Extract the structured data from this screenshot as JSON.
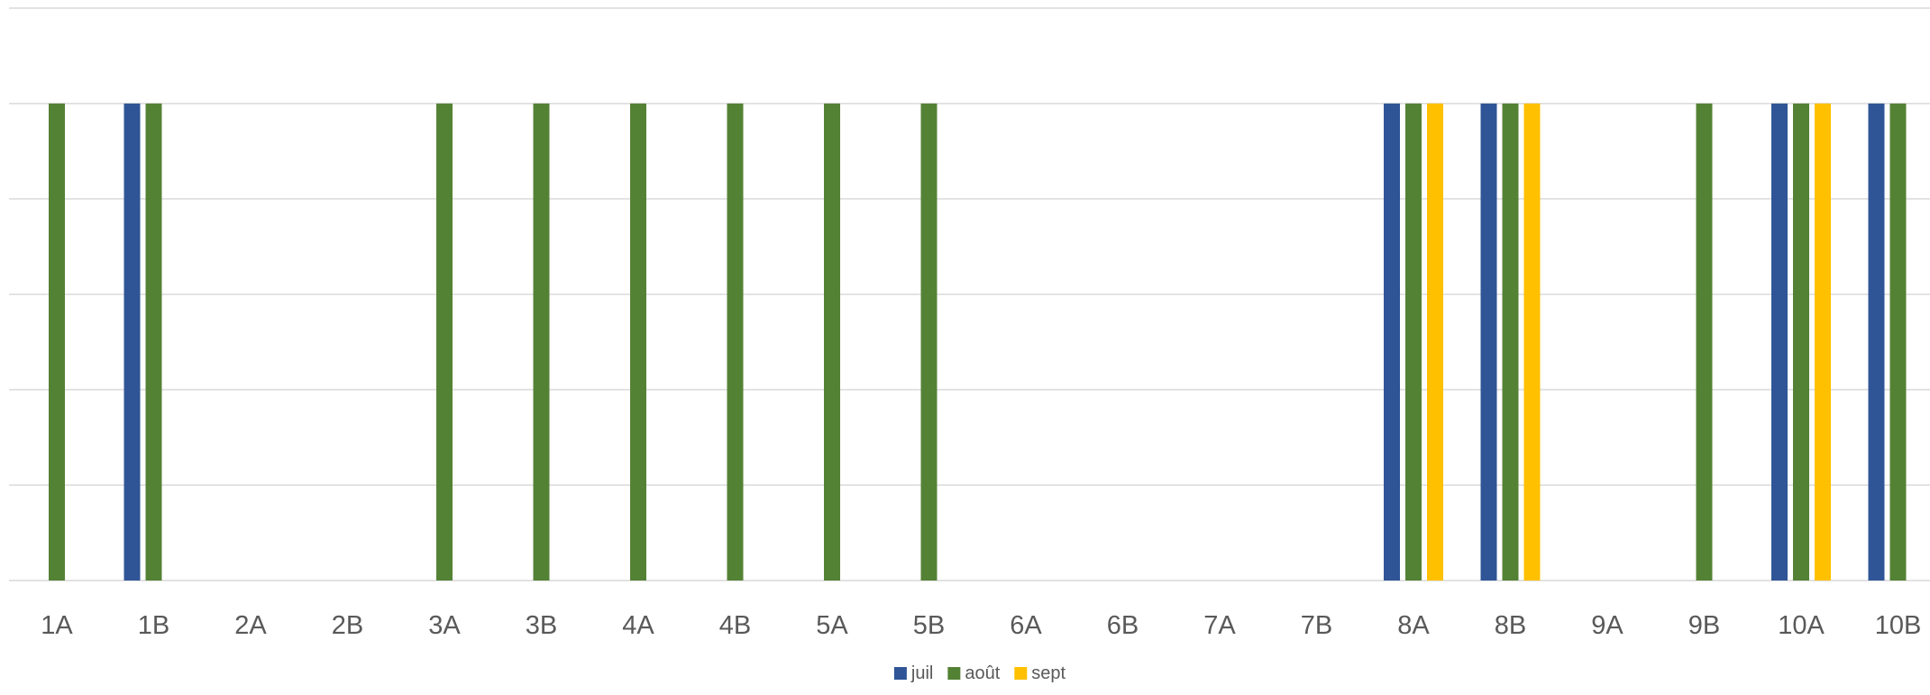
{
  "chart_data": {
    "type": "bar",
    "categories": [
      "1A",
      "1B",
      "2A",
      "2B",
      "3A",
      "3B",
      "4A",
      "4B",
      "5A",
      "5B",
      "6A",
      "6B",
      "7A",
      "7B",
      "8A",
      "8B",
      "9A",
      "9B",
      "10A",
      "10B"
    ],
    "series": [
      {
        "name": "juil",
        "color": "#2F5597",
        "values": [
          0,
          5,
          0,
          0,
          0,
          0,
          0,
          0,
          0,
          0,
          0,
          0,
          0,
          0,
          5,
          5,
          0,
          0,
          5,
          5
        ]
      },
      {
        "name": "août",
        "color": "#548235",
        "values": [
          5,
          5,
          0,
          0,
          5,
          5,
          5,
          5,
          5,
          5,
          0,
          0,
          0,
          0,
          5,
          5,
          0,
          5,
          5,
          5
        ]
      },
      {
        "name": "sept",
        "color": "#FFC000",
        "values": [
          0,
          0,
          0,
          0,
          0,
          0,
          0,
          0,
          0,
          0,
          0,
          0,
          0,
          0,
          5,
          5,
          0,
          0,
          5,
          0
        ]
      }
    ],
    "ylim": [
      0,
      6
    ],
    "y_gridlines": [
      0,
      1,
      2,
      3,
      4,
      5,
      6
    ],
    "y_tick_labels_visible": false,
    "grid": true,
    "legend": "bottom-center"
  }
}
